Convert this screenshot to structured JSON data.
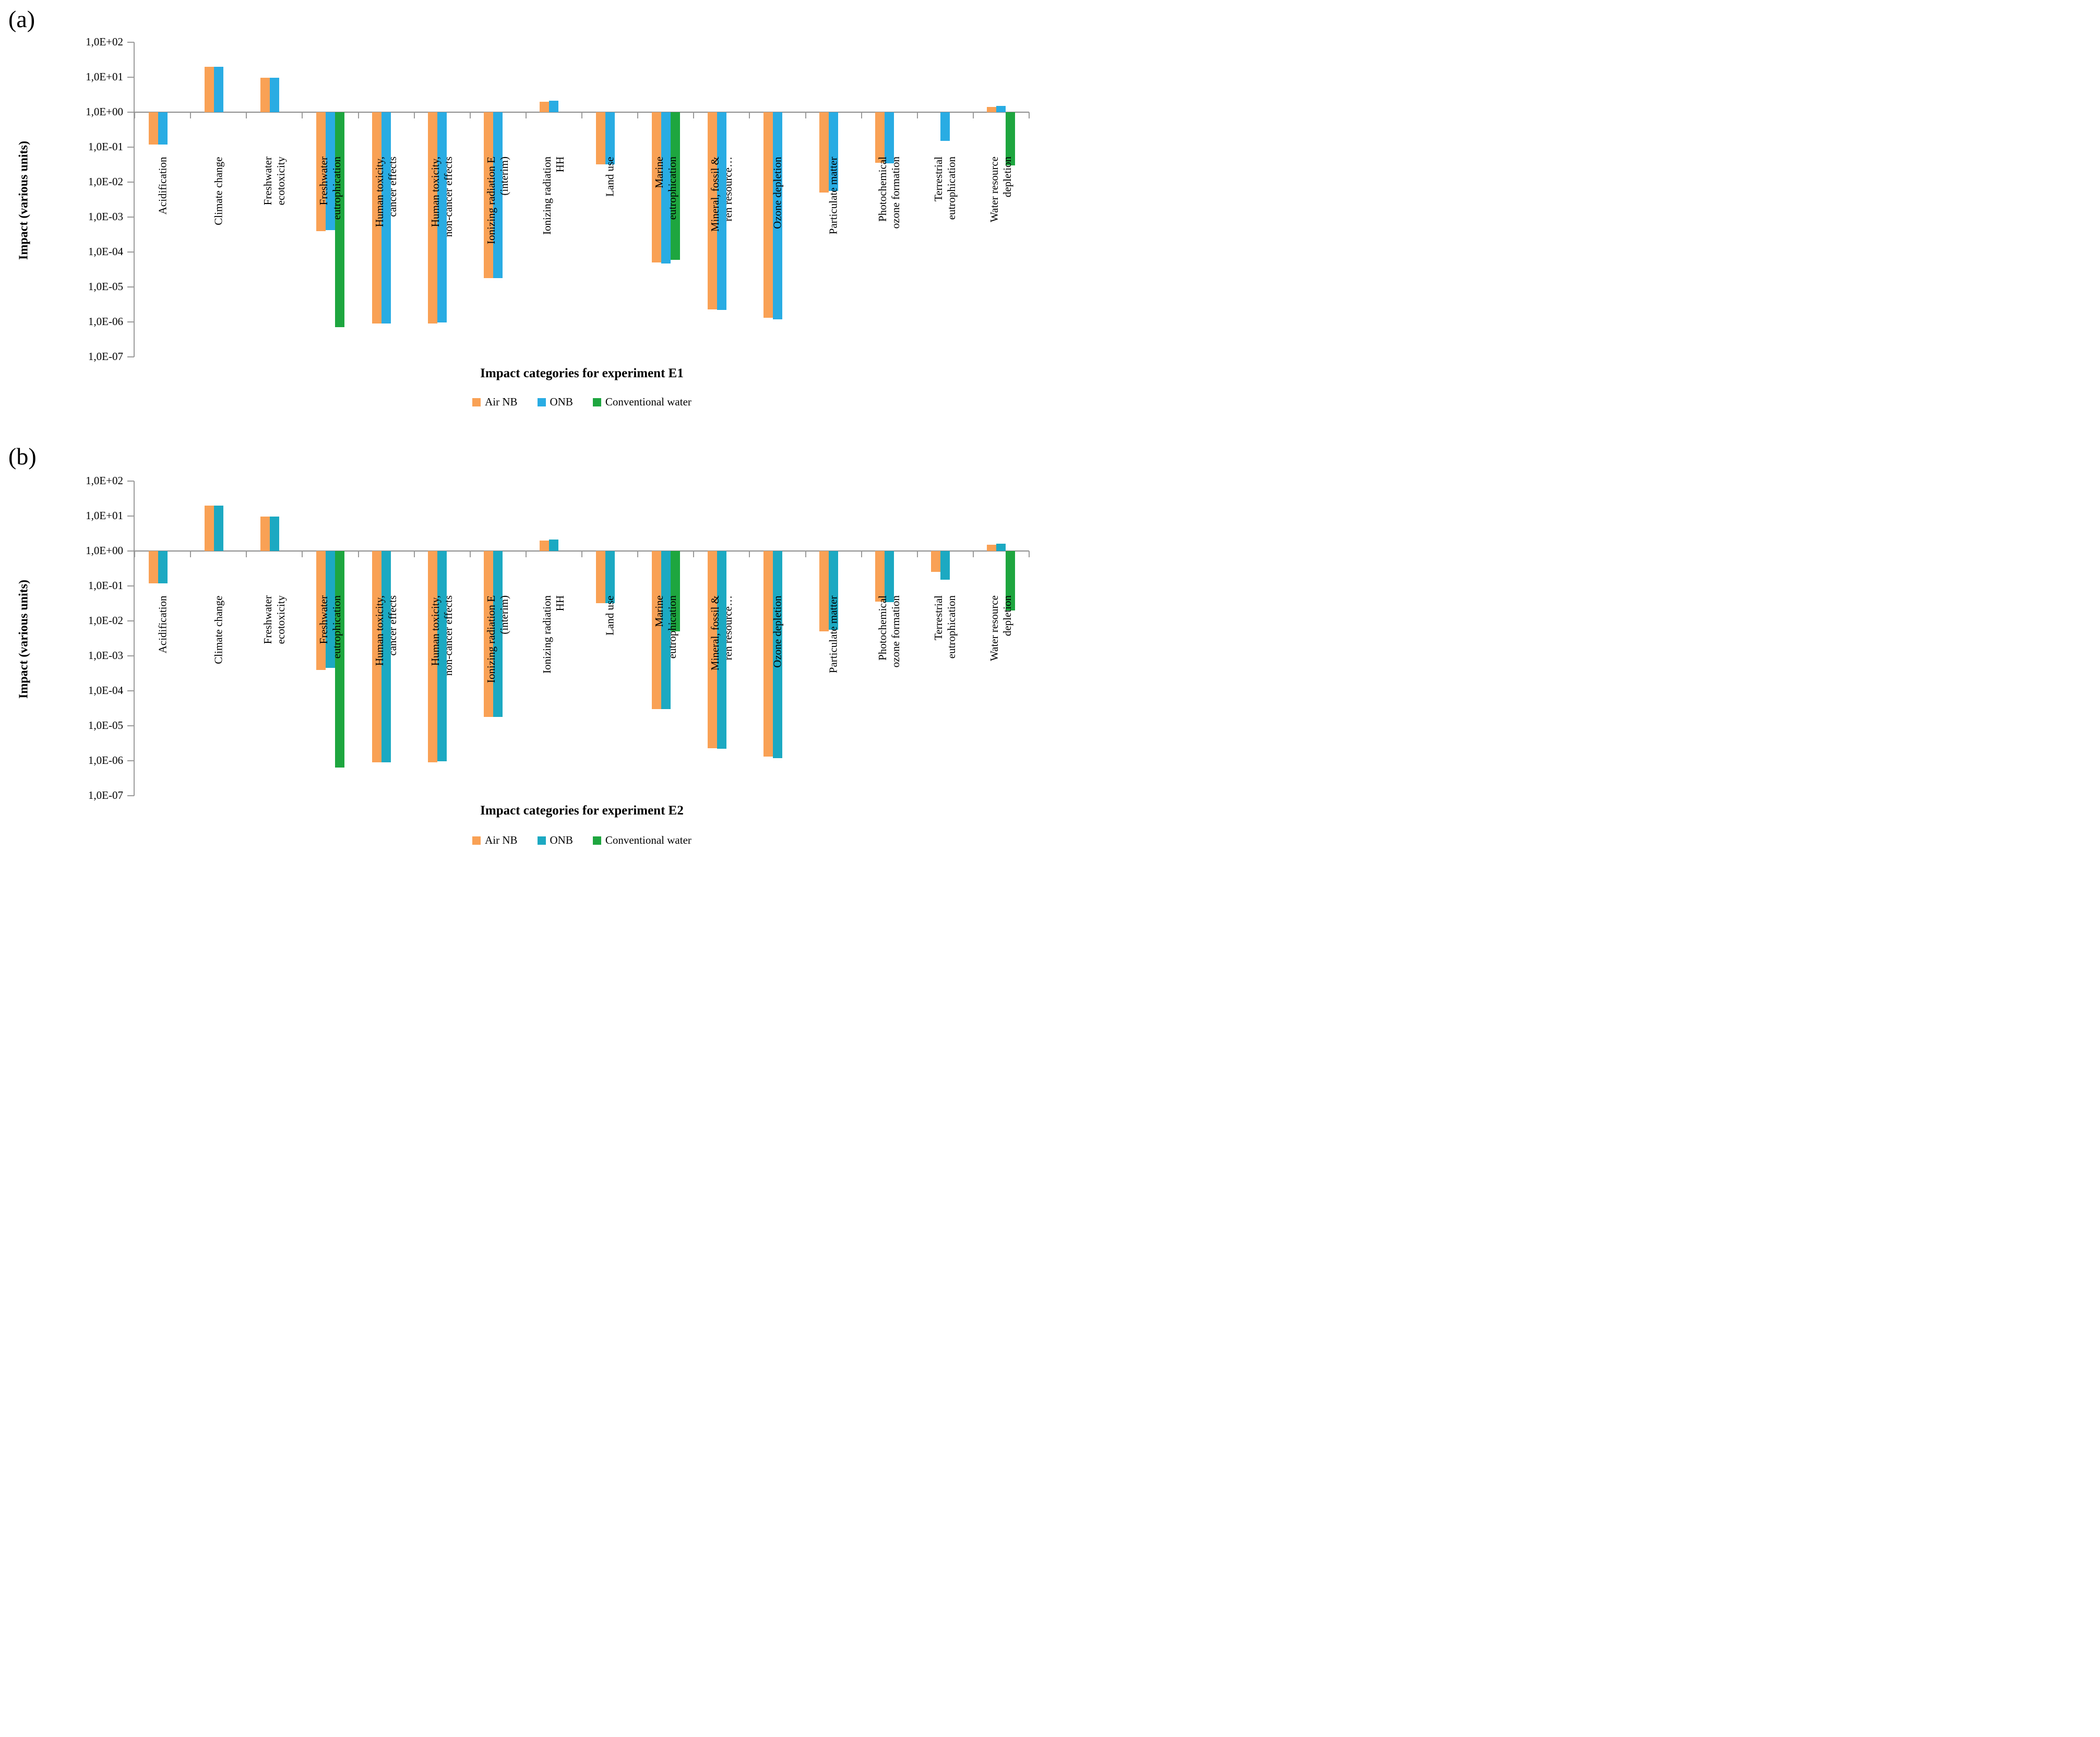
{
  "figure": {
    "background": "#FFFFFF",
    "description_visible_panels": 2
  },
  "chart_data": [
    {
      "type": "bar",
      "panel_letter": "(a)",
      "xlabel": "Impact categories for experiment E1",
      "ylabel": "Impact (various units)",
      "y_scale": "log10",
      "ylim": [
        1e-07,
        100
      ],
      "baseline": 1.0,
      "grid": false,
      "legend_position": "bottom",
      "y_ticks": [
        "1,0E+02",
        "1,0E+01",
        "1,0E+00",
        "1,0E-01",
        "1,0E-02",
        "1,0E-03",
        "1,0E-04",
        "1,0E-05",
        "1,0E-06",
        "1,0E-07"
      ],
      "categories": [
        [
          "Acidification"
        ],
        [
          "Climate change"
        ],
        [
          "Freshwater",
          "ecotoxicity"
        ],
        [
          "Freshwater",
          "eutrophication"
        ],
        [
          "Human toxicity,",
          "cancer effects"
        ],
        [
          "Human toxicity,",
          "non-cancer effects"
        ],
        [
          "Ionizing radiation E",
          "(interim)"
        ],
        [
          "Ionizing radiation",
          "HH"
        ],
        [
          "Land use"
        ],
        [
          "Marine",
          "eutrophication"
        ],
        [
          "Mineral, fossil &",
          "ren resource…"
        ],
        [
          "Ozone depletion"
        ],
        [
          "Particulate matter"
        ],
        [
          "Photochemical",
          "ozone formation"
        ],
        [
          "Terrestrial",
          "eutrophication"
        ],
        [
          "Water resource",
          "depletion"
        ]
      ],
      "series": [
        {
          "name": "Air NB",
          "color": "#F9A155",
          "values": [
            0.12,
            20,
            9.5,
            0.0004,
            9e-07,
            9e-07,
            1.8e-05,
            2.0,
            0.032,
            5e-05,
            2.3e-06,
            1.3e-06,
            0.005,
            0.036,
            null,
            1.4
          ]
        },
        {
          "name": "ONB",
          "color": "#29ACE3",
          "values": [
            0.12,
            20,
            9.7,
            0.00042,
            9e-07,
            9.5e-07,
            1.8e-05,
            2.1,
            0.032,
            4.7e-05,
            2.2e-06,
            1.2e-06,
            0.0055,
            0.034,
            0.15,
            1.5
          ]
        },
        {
          "name": "Conventional water",
          "color": "#1EA63F",
          "values": [
            null,
            null,
            null,
            7e-07,
            null,
            null,
            null,
            null,
            null,
            6e-05,
            null,
            null,
            null,
            null,
            null,
            0.03
          ]
        }
      ]
    },
    {
      "type": "bar",
      "panel_letter": "(b)",
      "xlabel": "Impact categories for experiment E2",
      "ylabel": "Impact (various units)",
      "y_scale": "log10",
      "ylim": [
        1e-07,
        100
      ],
      "baseline": 1.0,
      "grid": false,
      "legend_position": "bottom",
      "y_ticks": [
        "1,0E+02",
        "1,0E+01",
        "1,0E+00",
        "1,0E-01",
        "1,0E-02",
        "1,0E-03",
        "1,0E-04",
        "1,0E-05",
        "1,0E-06",
        "1,0E-07"
      ],
      "categories": [
        [
          "Acidification"
        ],
        [
          "Climate change"
        ],
        [
          "Freshwater",
          "ecotoxicity"
        ],
        [
          "Freshwater",
          "eutrophication"
        ],
        [
          "Human toxicity,",
          "cancer effects"
        ],
        [
          "Human toxicity,",
          "non-cancer effects"
        ],
        [
          "Ionizing radiation E",
          "(interim)"
        ],
        [
          "Ionizing radiation",
          "HH"
        ],
        [
          "Land use"
        ],
        [
          "Marine",
          "eutrophication"
        ],
        [
          "Mineral, fossil &",
          "ren resource…"
        ],
        [
          "Ozone depletion"
        ],
        [
          "Particulate matter"
        ],
        [
          "Photochemical",
          "ozone formation"
        ],
        [
          "Terrestrial",
          "eutrophication"
        ],
        [
          "Water resource",
          "depletion"
        ]
      ],
      "series": [
        {
          "name": "Air NB",
          "color": "#F9A155",
          "values": [
            0.12,
            20,
            9.5,
            0.0004,
            9e-07,
            9e-07,
            1.8e-05,
            2.0,
            0.032,
            3e-05,
            2.3e-06,
            1.3e-06,
            0.005,
            0.036,
            0.25,
            1.5
          ]
        },
        {
          "name": "ONB",
          "color": "#1CA9C2",
          "values": [
            0.12,
            20,
            9.8,
            0.00045,
            9e-07,
            9.5e-07,
            1.8e-05,
            2.1,
            0.032,
            3e-05,
            2.2e-06,
            1.2e-06,
            0.0055,
            0.034,
            0.15,
            1.6
          ]
        },
        {
          "name": "Conventional water",
          "color": "#1EA63F",
          "values": [
            null,
            null,
            null,
            6.5e-07,
            null,
            null,
            null,
            null,
            null,
            0.005,
            null,
            null,
            null,
            null,
            null,
            0.02
          ]
        }
      ]
    }
  ]
}
